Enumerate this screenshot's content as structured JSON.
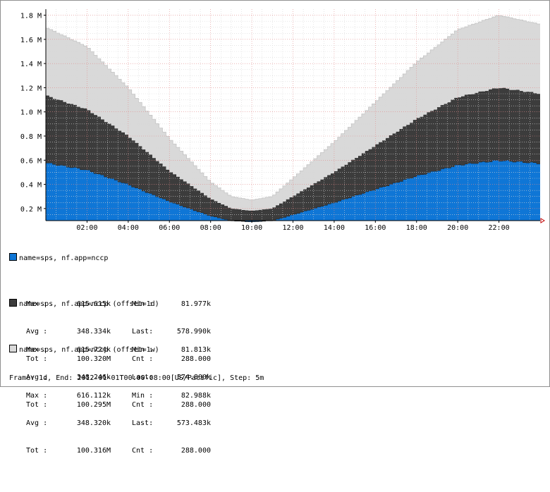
{
  "chart_data": {
    "type": "area",
    "stacked": true,
    "x_ticks": [
      "02:00",
      "04:00",
      "06:00",
      "08:00",
      "10:00",
      "12:00",
      "14:00",
      "16:00",
      "18:00",
      "20:00",
      "22:00"
    ],
    "y_ticks": [
      "0.2 M",
      "0.4 M",
      "0.6 M",
      "0.8 M",
      "1.0 M",
      "1.2 M",
      "1.4 M",
      "1.6 M",
      "1.8 M"
    ],
    "x_range_hours": [
      0,
      24
    ],
    "y_range": [
      100000,
      1850000
    ],
    "grid": true,
    "series": [
      {
        "name": "name=sps, nf.app=nccp",
        "color": "#0f76d6",
        "hours": [
          0,
          2,
          4,
          6,
          8,
          9,
          10,
          11,
          12,
          14,
          16,
          18,
          20,
          22,
          24
        ],
        "values": [
          580000,
          520000,
          400000,
          260000,
          140000,
          100000,
          90000,
          100000,
          150000,
          250000,
          360000,
          470000,
          560000,
          600000,
          575000
        ],
        "stats": {
          "max": "615.615k",
          "min": "81.977k",
          "avg": "348.334k",
          "last": "578.990k",
          "tot": "100.320M",
          "cnt": "288.000"
        }
      },
      {
        "name": "name=sps, nf.app=nccp (offset=1d)",
        "color": "#3c3c3c",
        "hours": [
          0,
          2,
          4,
          6,
          8,
          9,
          10,
          11,
          12,
          14,
          16,
          18,
          20,
          22,
          24
        ],
        "values": [
          555000,
          500000,
          400000,
          250000,
          140000,
          100000,
          90000,
          100000,
          150000,
          250000,
          360000,
          470000,
          560000,
          600000,
          575000
        ],
        "stats": {
          "max": "615.724k",
          "min": "81.813k",
          "avg": "348.246k",
          "last": "574.800k",
          "tot": "100.295M",
          "cnt": "288.000"
        }
      },
      {
        "name": "name=sps, nf.app=nccp (offset=1w)",
        "color": "#d9d9d9",
        "hours": [
          0,
          2,
          4,
          6,
          8,
          9,
          10,
          11,
          12,
          14,
          16,
          18,
          20,
          22,
          24
        ],
        "values": [
          565000,
          520000,
          400000,
          270000,
          140000,
          100000,
          90000,
          100000,
          150000,
          250000,
          360000,
          470000,
          560000,
          600000,
          575000
        ],
        "stats": {
          "max": "616.112k",
          "min": "82.988k",
          "avg": "348.320k",
          "last": "573.483k",
          "tot": "100.316M",
          "cnt": "288.000"
        }
      }
    ]
  },
  "labels": {
    "max": "Max",
    "min": "Min",
    "avg": "Avg",
    "last": "Last",
    "tot": "Tot",
    "cnt": "Cnt"
  },
  "footer": "Frame: 1d, End: 2012-01-01T00:00-08:00[US/Pacific], Step: 5m"
}
